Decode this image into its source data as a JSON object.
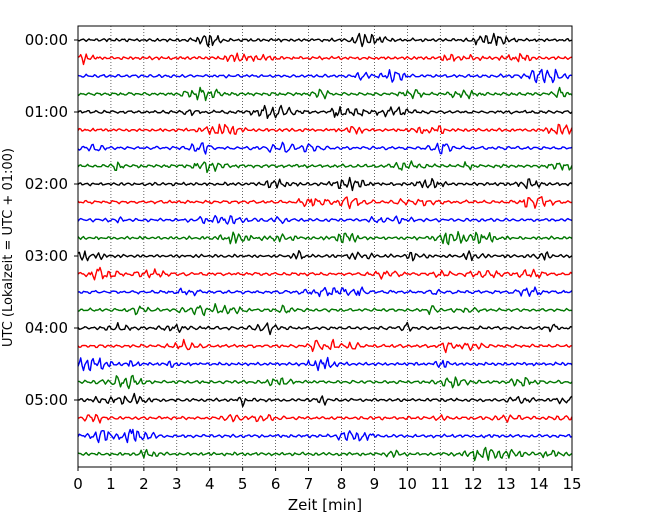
{
  "chart_data": {
    "type": "line",
    "title": "",
    "xlabel": "Zeit  [min]",
    "ylabel": "UTC (Lokalzeit = UTC + 01:00)",
    "xlim": [
      0,
      15
    ],
    "x_ticks": [
      0,
      1,
      2,
      3,
      4,
      5,
      6,
      7,
      8,
      9,
      10,
      11,
      12,
      13,
      14,
      15
    ],
    "y_tick_labels": [
      "00:00",
      "01:00",
      "02:00",
      "03:00",
      "04:00",
      "05:00"
    ],
    "trace_interval_minutes": 15,
    "trace_count": 24,
    "trace_colors": [
      "#000000",
      "#ff0000",
      "#0000ff",
      "#007700"
    ],
    "grid_x": "dotted",
    "legend": "none"
  }
}
